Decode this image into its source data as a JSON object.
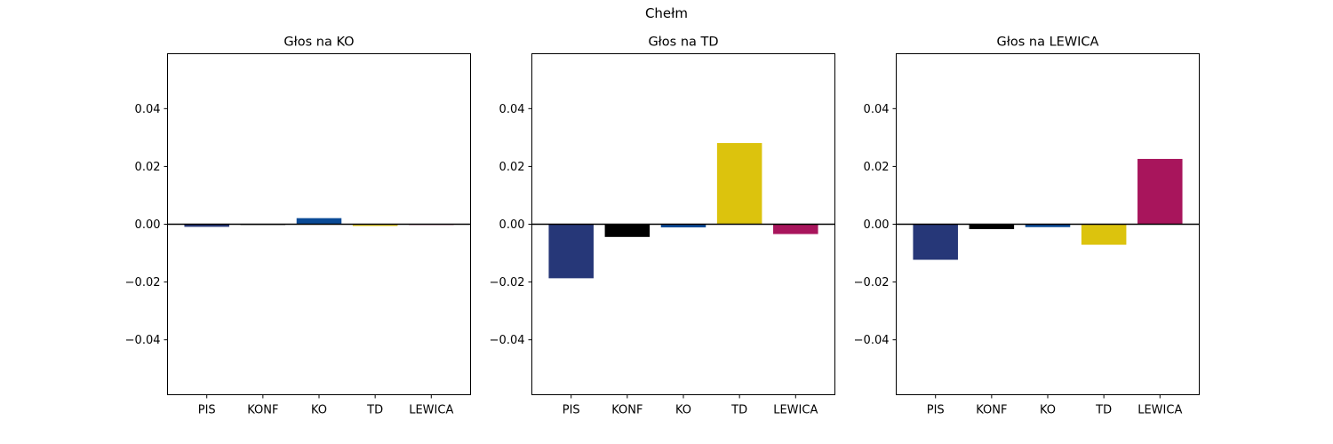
{
  "figure": {
    "suptitle": "Chełm"
  },
  "chart_data": [
    {
      "type": "bar",
      "title": "Głos na KO",
      "categories": [
        "PIS",
        "KONF",
        "KO",
        "TD",
        "LEWICA"
      ],
      "values": [
        -0.0009,
        -0.0002,
        0.0021,
        -0.0006,
        -0.0001
      ],
      "colors": [
        "#263778",
        "#000000",
        "#0a4a96",
        "#dcc30d",
        "#a8155c"
      ],
      "ylim": [
        -0.059,
        0.059
      ],
      "yticks": [
        -0.04,
        -0.02,
        0.0,
        0.02,
        0.04
      ],
      "ytick_labels": [
        "−0.04",
        "−0.02",
        "0.00",
        "0.02",
        "0.04"
      ],
      "xlabel": "",
      "ylabel": "",
      "zero_line": true,
      "grid": false
    },
    {
      "type": "bar",
      "title": "Głos na TD",
      "categories": [
        "PIS",
        "KONF",
        "KO",
        "TD",
        "LEWICA"
      ],
      "values": [
        -0.0187,
        -0.0044,
        -0.0011,
        0.0281,
        -0.0034
      ],
      "colors": [
        "#263778",
        "#000000",
        "#0a4a96",
        "#dcc30d",
        "#a8155c"
      ],
      "ylim": [
        -0.059,
        0.059
      ],
      "yticks": [
        -0.04,
        -0.02,
        0.0,
        0.02,
        0.04
      ],
      "ytick_labels": [
        "−0.04",
        "−0.02",
        "0.00",
        "0.02",
        "0.04"
      ],
      "xlabel": "",
      "ylabel": "",
      "zero_line": true,
      "grid": false
    },
    {
      "type": "bar",
      "title": "Głos na LEWICA",
      "categories": [
        "PIS",
        "KONF",
        "KO",
        "TD",
        "LEWICA"
      ],
      "values": [
        -0.0123,
        -0.0017,
        -0.001,
        -0.0071,
        0.0226
      ],
      "colors": [
        "#263778",
        "#000000",
        "#0a4a96",
        "#dcc30d",
        "#a8155c"
      ],
      "ylim": [
        -0.059,
        0.059
      ],
      "yticks": [
        -0.04,
        -0.02,
        0.0,
        0.02,
        0.04
      ],
      "ytick_labels": [
        "−0.04",
        "−0.02",
        "0.00",
        "0.02",
        "0.04"
      ],
      "xlabel": "",
      "ylabel": "",
      "zero_line": true,
      "grid": false
    }
  ]
}
